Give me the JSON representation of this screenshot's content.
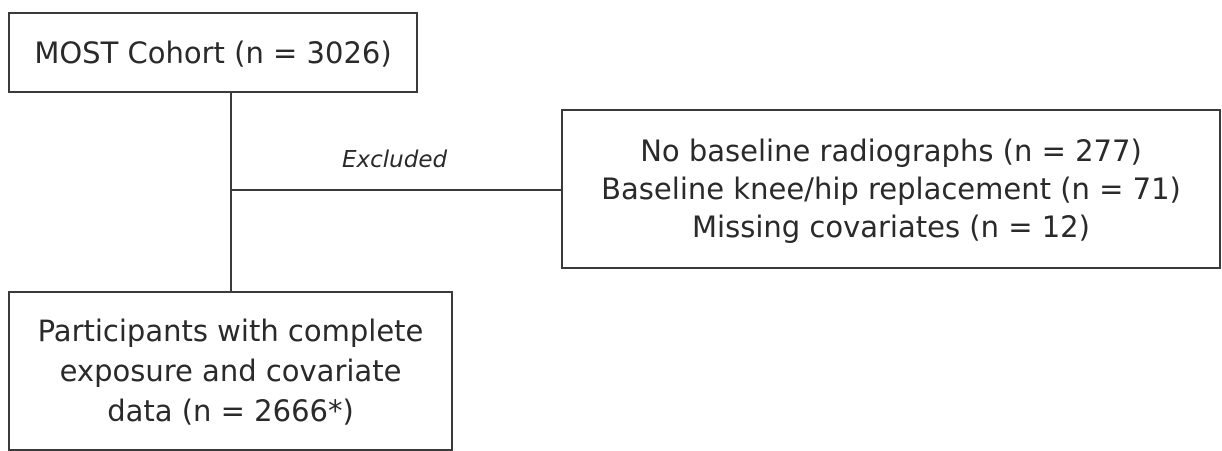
{
  "flowchart": {
    "top_box": {
      "text": "MOST Cohort (n = 3026)"
    },
    "edge_label": "Excluded",
    "exclusion_box": {
      "lines": [
        "No baseline radiographs (n = 277)",
        "Baseline knee/hip replacement (n = 71)",
        "Missing covariates (n = 12)"
      ]
    },
    "bottom_box": {
      "lines": [
        "Participants with complete",
        "exposure and covariate",
        "data (n = 2666*)"
      ]
    }
  }
}
